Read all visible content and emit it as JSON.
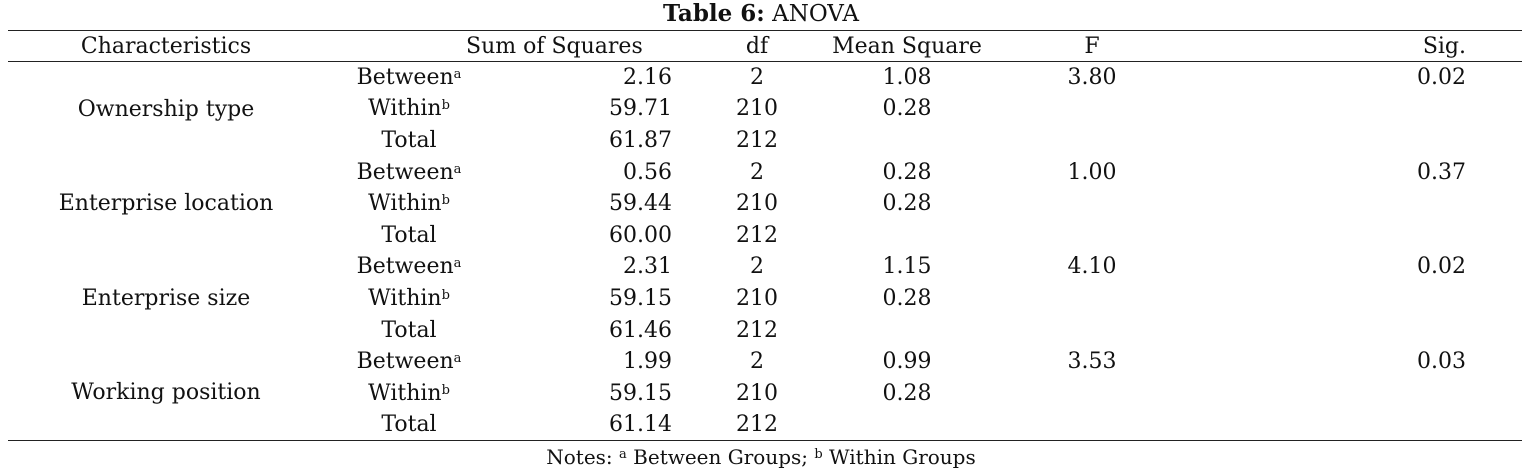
{
  "caption": {
    "label": "Table 6:",
    "title": "ANOVA"
  },
  "headers": {
    "characteristics": "Characteristics",
    "sum_of_squares": "Sum of Squares",
    "df": "df",
    "mean_square": "Mean Square",
    "f": "F",
    "sig": "Sig."
  },
  "groups": [
    {
      "characteristic": "Ownership type",
      "rows": [
        {
          "source": "Between",
          "sup": "a",
          "ss": "2.16",
          "df": "2",
          "ms": "1.08",
          "f": "3.80",
          "sig": "0.02"
        },
        {
          "source": "Within",
          "sup": "b",
          "ss": "59.71",
          "df": "210",
          "ms": "0.28",
          "f": "",
          "sig": ""
        },
        {
          "source": "Total",
          "sup": "",
          "ss": "61.87",
          "df": "212",
          "ms": "",
          "f": "",
          "sig": ""
        }
      ]
    },
    {
      "characteristic": "Enterprise location",
      "rows": [
        {
          "source": "Between",
          "sup": "a",
          "ss": "0.56",
          "df": "2",
          "ms": "0.28",
          "f": "1.00",
          "sig": "0.37"
        },
        {
          "source": "Within",
          "sup": "b",
          "ss": "59.44",
          "df": "210",
          "ms": "0.28",
          "f": "",
          "sig": ""
        },
        {
          "source": "Total",
          "sup": "",
          "ss": "60.00",
          "df": "212",
          "ms": "",
          "f": "",
          "sig": ""
        }
      ]
    },
    {
      "characteristic": "Enterprise size",
      "rows": [
        {
          "source": "Between",
          "sup": "a",
          "ss": "2.31",
          "df": "2",
          "ms": "1.15",
          "f": "4.10",
          "sig": "0.02"
        },
        {
          "source": "Within",
          "sup": "b",
          "ss": "59.15",
          "df": "210",
          "ms": "0.28",
          "f": "",
          "sig": ""
        },
        {
          "source": "Total",
          "sup": "",
          "ss": "61.46",
          "df": "212",
          "ms": "",
          "f": "",
          "sig": ""
        }
      ]
    },
    {
      "characteristic": "Working position",
      "rows": [
        {
          "source": "Between",
          "sup": "a",
          "ss": "1.99",
          "df": "2",
          "ms": "0.99",
          "f": "3.53",
          "sig": "0.03"
        },
        {
          "source": "Within",
          "sup": "b",
          "ss": "59.15",
          "df": "210",
          "ms": "0.28",
          "f": "",
          "sig": ""
        },
        {
          "source": "Total",
          "sup": "",
          "ss": "61.14",
          "df": "212",
          "ms": "",
          "f": "",
          "sig": ""
        }
      ]
    }
  ],
  "notes": {
    "prefix": "Notes: ",
    "a_mark": "a",
    "a_text": " Between Groups; ",
    "b_mark": "b",
    "b_text": " Within Groups"
  }
}
